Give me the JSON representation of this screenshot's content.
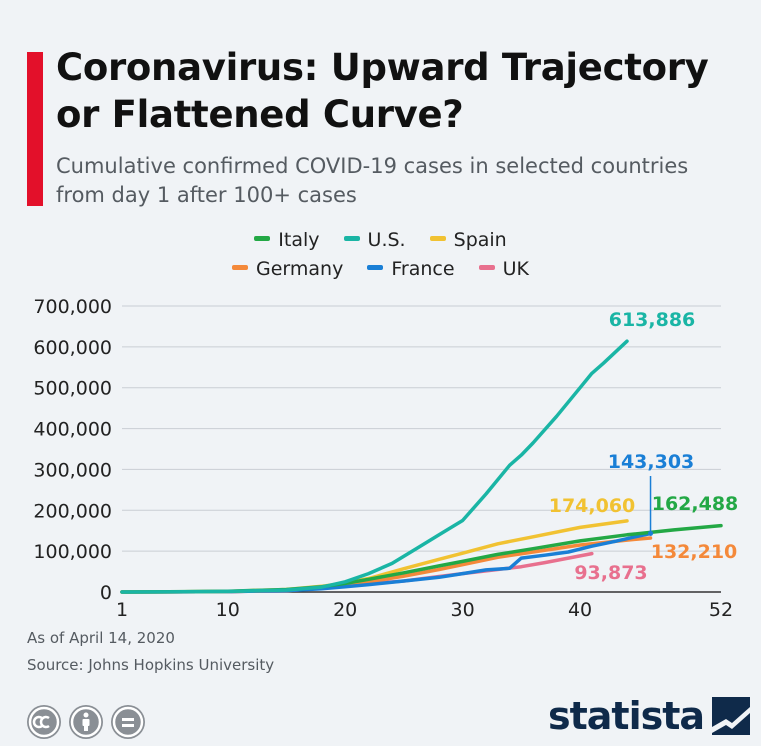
{
  "header": {
    "title": "Coronavirus: Upward Trajectory or Flattened Curve?",
    "subtitle": "Cumulative confirmed COVID-19 cases in selected countries from day 1 after 100+ cases",
    "accent_color": "#e3102a"
  },
  "chart_data": {
    "type": "line",
    "title": "Coronavirus: Upward Trajectory or Flattened Curve?",
    "subtitle": "Cumulative confirmed COVID-19 cases in selected countries from day 1 after 100+ cases",
    "xlabel": "",
    "ylabel": "",
    "xlim": [
      1,
      52
    ],
    "ylim": [
      0,
      700000
    ],
    "x_ticks": [
      1,
      10,
      20,
      30,
      40,
      52
    ],
    "y_ticks": [
      0,
      100000,
      200000,
      300000,
      400000,
      500000,
      600000,
      700000
    ],
    "grid": "horizontal",
    "legend_position": "top",
    "legend_rows": [
      [
        "Italy",
        "U.S.",
        "Spain"
      ],
      [
        "Germany",
        "France",
        "UK"
      ]
    ],
    "series": [
      {
        "name": "Italy",
        "color": "#23a845",
        "end_label": "162,488",
        "x": [
          1,
          5,
          10,
          15,
          18,
          20,
          22,
          25,
          28,
          30,
          33,
          36,
          40,
          44,
          48,
          52
        ],
        "y": [
          100,
          500,
          2000,
          6000,
          13000,
          21000,
          31000,
          47000,
          64000,
          75000,
          92000,
          106000,
          125000,
          140000,
          152000,
          162488
        ]
      },
      {
        "name": "U.S.",
        "color": "#1ab5a5",
        "end_label": "613,886",
        "x": [
          1,
          5,
          10,
          15,
          18,
          20,
          22,
          24,
          26,
          28,
          30,
          32,
          34,
          35,
          36,
          38,
          40,
          41,
          42,
          44
        ],
        "y": [
          100,
          300,
          1500,
          5000,
          12000,
          25000,
          45000,
          70000,
          105000,
          140000,
          175000,
          240000,
          310000,
          335000,
          365000,
          430000,
          500000,
          535000,
          560000,
          613886
        ]
      },
      {
        "name": "Spain",
        "color": "#f1c232",
        "end_label": "174,060",
        "x": [
          1,
          5,
          10,
          15,
          18,
          20,
          22,
          25,
          28,
          30,
          33,
          36,
          40,
          44
        ],
        "y": [
          100,
          300,
          1500,
          6000,
          14000,
          22000,
          33000,
          57000,
          80000,
          95000,
          118000,
          135000,
          158000,
          174060
        ]
      },
      {
        "name": "Germany",
        "color": "#f4893a",
        "end_label": "132,210",
        "x": [
          1,
          5,
          10,
          15,
          18,
          20,
          22,
          25,
          28,
          30,
          33,
          36,
          40,
          44,
          46
        ],
        "y": [
          100,
          300,
          1000,
          4000,
          10000,
          17000,
          25000,
          39000,
          55000,
          67000,
          85000,
          98000,
          115000,
          127000,
          132210
        ]
      },
      {
        "name": "France",
        "color": "#1a7fd6",
        "end_label": "143,303",
        "x": [
          1,
          5,
          10,
          15,
          18,
          20,
          22,
          25,
          28,
          30,
          32,
          34,
          35,
          37,
          39,
          41,
          43,
          45,
          46
        ],
        "y": [
          100,
          300,
          1000,
          3500,
          8000,
          13000,
          18000,
          27000,
          36000,
          45000,
          54000,
          58000,
          83000,
          90000,
          98000,
          112000,
          124000,
          137000,
          143303
        ]
      },
      {
        "name": "UK",
        "color": "#e8708e",
        "end_label": "93,873",
        "x": [
          1,
          5,
          10,
          15,
          18,
          20,
          22,
          25,
          28,
          30,
          33,
          35,
          37,
          39,
          41
        ],
        "y": [
          100,
          300,
          1000,
          3500,
          9000,
          15000,
          20000,
          27000,
          38000,
          45000,
          55000,
          62000,
          72000,
          83000,
          93873
        ]
      }
    ]
  },
  "footer": {
    "as_of": "As of April 14, 2020",
    "source": "Source: Johns Hopkins University",
    "brand": "statista"
  }
}
